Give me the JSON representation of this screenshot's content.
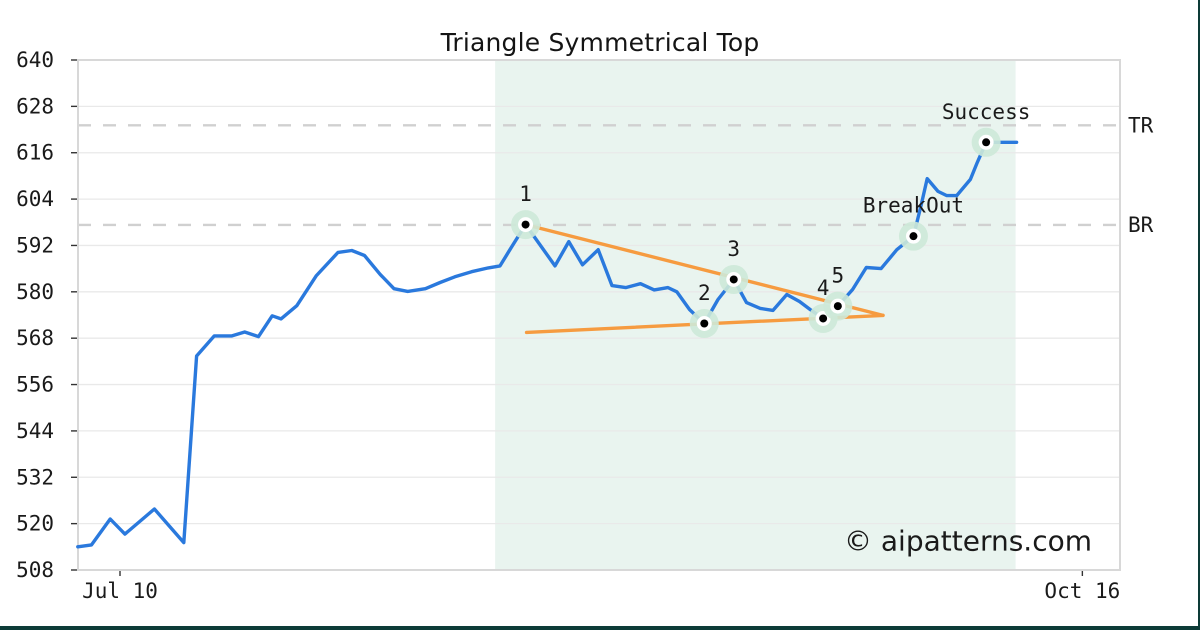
{
  "title": "Triangle Symmetrical Top",
  "watermark": "© aipatterns.com",
  "axes": {
    "y_ticks": [
      508,
      520,
      532,
      544,
      556,
      568,
      580,
      592,
      604,
      616,
      628,
      640
    ],
    "x_ticks": [
      {
        "label": "Jul 10",
        "day": 0
      },
      {
        "label": "Oct 16",
        "day": 98
      }
    ],
    "right_labels": [
      {
        "text": "TR",
        "value": 623.1
      },
      {
        "text": "BR",
        "value": 597.3
      }
    ]
  },
  "chart_data": {
    "type": "line",
    "title": "Triangle Symmetrical Top",
    "xlabel": "",
    "ylabel": "",
    "x_unit": "days since Jul 10",
    "xlim": [
      -4.3,
      101.8
    ],
    "ylim": [
      508,
      640
    ],
    "grid": true,
    "series": [
      {
        "name": "price",
        "points": [
          [
            -4.3,
            514.0
          ],
          [
            -2.9,
            514.5
          ],
          [
            -1.0,
            521.2
          ],
          [
            0.5,
            517.3
          ],
          [
            3.5,
            523.8
          ],
          [
            6.5,
            515.1
          ],
          [
            7.8,
            563.4
          ],
          [
            9.6,
            568.6
          ],
          [
            11.4,
            568.6
          ],
          [
            12.7,
            569.6
          ],
          [
            14.1,
            568.4
          ],
          [
            15.5,
            573.8
          ],
          [
            16.4,
            573.0
          ],
          [
            18.0,
            576.4
          ],
          [
            20.0,
            584.2
          ],
          [
            22.2,
            590.2
          ],
          [
            23.6,
            590.7
          ],
          [
            24.9,
            589.4
          ],
          [
            26.5,
            584.5
          ],
          [
            27.9,
            580.8
          ],
          [
            29.3,
            580.1
          ],
          [
            31.1,
            580.8
          ],
          [
            32.6,
            582.4
          ],
          [
            34.1,
            583.9
          ],
          [
            35.8,
            585.2
          ],
          [
            37.5,
            586.2
          ],
          [
            38.7,
            586.7
          ],
          [
            39.9,
            591.7
          ],
          [
            41.3,
            597.4
          ],
          [
            42.9,
            591.7
          ],
          [
            44.3,
            586.7
          ],
          [
            45.7,
            593.0
          ],
          [
            47.1,
            587.0
          ],
          [
            48.7,
            590.9
          ],
          [
            50.1,
            581.6
          ],
          [
            51.5,
            581.1
          ],
          [
            53.0,
            582.1
          ],
          [
            54.4,
            580.5
          ],
          [
            55.8,
            581.1
          ],
          [
            56.7,
            580.0
          ],
          [
            58.0,
            575.4
          ],
          [
            59.5,
            571.8
          ],
          [
            60.9,
            578.0
          ],
          [
            62.5,
            583.2
          ],
          [
            63.8,
            577.2
          ],
          [
            65.2,
            575.7
          ],
          [
            66.5,
            575.2
          ],
          [
            67.9,
            579.3
          ],
          [
            69.2,
            577.5
          ],
          [
            70.3,
            575.4
          ],
          [
            71.6,
            573.1
          ],
          [
            73.1,
            576.3
          ],
          [
            74.6,
            580.6
          ],
          [
            76.0,
            586.3
          ],
          [
            77.5,
            586.0
          ],
          [
            79.1,
            590.9
          ],
          [
            80.8,
            594.4
          ],
          [
            81.6,
            602.6
          ],
          [
            82.2,
            609.3
          ],
          [
            83.3,
            606.0
          ],
          [
            84.2,
            604.9
          ],
          [
            85.2,
            604.9
          ],
          [
            86.6,
            609.1
          ],
          [
            87.3,
            613.5
          ],
          [
            88.2,
            618.7
          ],
          [
            91.3,
            618.7
          ]
        ]
      }
    ],
    "levels": {
      "TR": 623.1,
      "BR": 597.3
    },
    "trendlines": [
      {
        "name": "upper",
        "from": [
          41.3,
          597.4
        ],
        "to": [
          77.7,
          573.9
        ]
      },
      {
        "name": "lower",
        "from": [
          41.4,
          569.5
        ],
        "to": [
          77.7,
          573.9
        ]
      }
    ],
    "pattern_zone": {
      "from_day": 38.2,
      "to_day": 91.2
    },
    "markers": [
      {
        "label": "1",
        "d": 41.3,
        "v": 597.4
      },
      {
        "label": "2",
        "d": 59.5,
        "v": 571.8
      },
      {
        "label": "3",
        "d": 62.5,
        "v": 583.2
      },
      {
        "label": "4",
        "d": 71.6,
        "v": 573.1
      },
      {
        "label": "5",
        "d": 73.1,
        "v": 576.3
      },
      {
        "label": "BreakOut",
        "d": 80.8,
        "v": 594.4
      },
      {
        "label": "Success",
        "d": 88.2,
        "v": 618.7
      }
    ],
    "legend": false
  },
  "colors": {
    "accent_teal": "#0d3b37",
    "price_blue": "#2a79dd",
    "trend_orange": "#f69b40",
    "zone_mint": "#e9f4ef",
    "halo_green": "#cde9d8",
    "dashed_gray": "#d0d0d0",
    "grid_gray": "#e9e9e9",
    "border_gray": "#d8d8d8",
    "tick_dark": "#333333",
    "watermark_lavender": "#c4cbf1",
    "text_dark": "#1a1a1a"
  }
}
